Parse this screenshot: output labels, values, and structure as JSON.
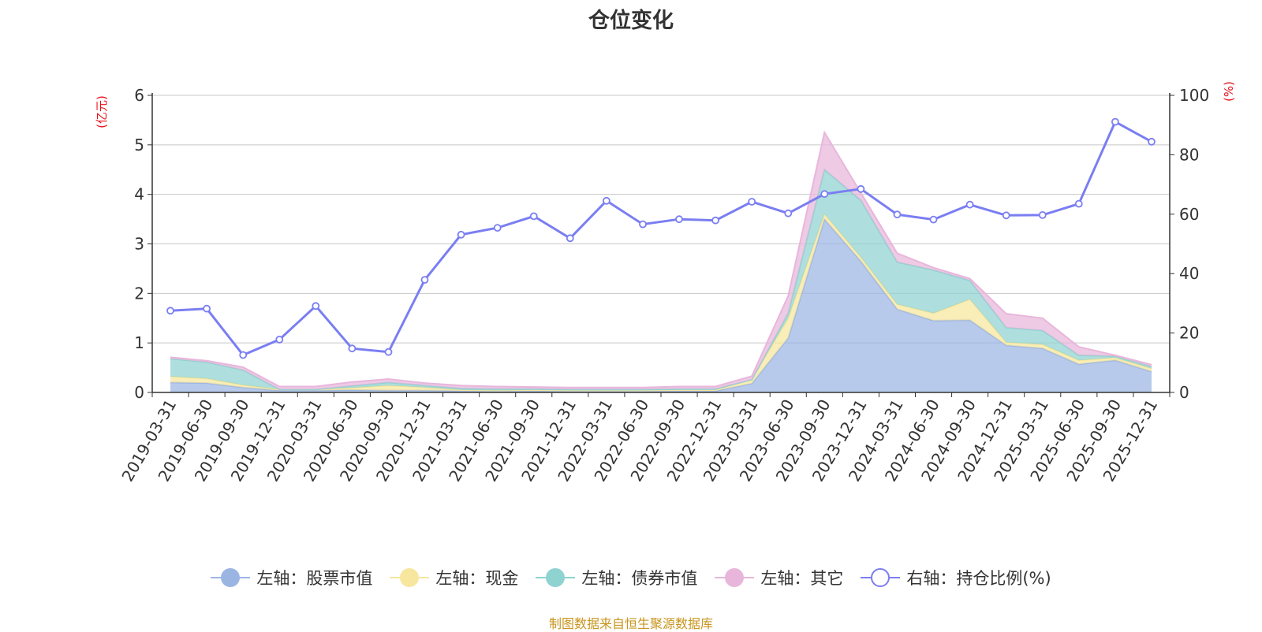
{
  "colors": {
    "stock": "#9bb5e3",
    "cash": "#f7e69d",
    "bond": "#8fd3d1",
    "other": "#e8b6db",
    "ratio": "#7a7ef2",
    "axis_label": "#e8121b",
    "grid": "#c8c8c8",
    "axis": "#333333",
    "source": "#c8951e"
  },
  "chart_data": {
    "type": "area",
    "title": "仓位变化",
    "left_axis_label": "(亿元)",
    "right_axis_label": "(%)",
    "left_ylim": [
      0,
      6
    ],
    "right_ylim": [
      0,
      100
    ],
    "left_ticks": [
      "0",
      "1",
      "2",
      "3",
      "4",
      "5",
      "6"
    ],
    "right_ticks": [
      "0",
      "20",
      "40",
      "60",
      "80",
      "100"
    ],
    "categories": [
      "2019-03-31",
      "2019-06-30",
      "2019-09-30",
      "2019-12-31",
      "2020-03-31",
      "2020-06-30",
      "2020-09-30",
      "2020-12-31",
      "2021-03-31",
      "2021-06-30",
      "2021-09-30",
      "2021-12-31",
      "2022-03-31",
      "2022-06-30",
      "2022-09-30",
      "2022-12-31",
      "2023-03-31",
      "2023-06-30",
      "2023-09-30",
      "2023-12-31",
      "2024-03-31",
      "2024-06-30",
      "2024-09-30",
      "2024-12-31",
      "2025-03-31",
      "2025-06-30",
      "2025-09-30",
      "2025-12-31"
    ],
    "series": [
      {
        "name": "左轴：股票市值",
        "axis": "left",
        "stacked": true,
        "values": [
          0.2,
          0.19,
          0.1,
          0.04,
          0.04,
          0.05,
          0.04,
          0.04,
          0.03,
          0.03,
          0.03,
          0.03,
          0.03,
          0.03,
          0.03,
          0.03,
          0.18,
          1.1,
          3.5,
          2.65,
          1.68,
          1.45,
          1.46,
          0.95,
          0.89,
          0.57,
          0.65,
          0.42
        ]
      },
      {
        "name": "左轴：现金",
        "axis": "left",
        "stacked": true,
        "values": [
          0.12,
          0.09,
          0.05,
          0.02,
          0.02,
          0.04,
          0.1,
          0.06,
          0.02,
          0.01,
          0.02,
          0.01,
          0.01,
          0.01,
          0.02,
          0.02,
          0.08,
          0.4,
          0.1,
          0.08,
          0.1,
          0.15,
          0.42,
          0.06,
          0.08,
          0.08,
          0.05,
          0.06
        ]
      },
      {
        "name": "左轴：债券市值",
        "axis": "left",
        "stacked": true,
        "values": [
          0.36,
          0.33,
          0.3,
          0.0,
          0.0,
          0.04,
          0.06,
          0.04,
          0.03,
          0.03,
          0.02,
          0.02,
          0.02,
          0.02,
          0.02,
          0.02,
          0.0,
          0.1,
          0.9,
          1.15,
          0.85,
          0.87,
          0.38,
          0.3,
          0.28,
          0.1,
          0.03,
          0.04
        ]
      },
      {
        "name": "左轴：其它",
        "axis": "left",
        "stacked": true,
        "values": [
          0.03,
          0.03,
          0.06,
          0.06,
          0.06,
          0.08,
          0.07,
          0.05,
          0.06,
          0.05,
          0.04,
          0.04,
          0.04,
          0.04,
          0.05,
          0.05,
          0.07,
          0.35,
          0.75,
          0.15,
          0.18,
          0.05,
          0.04,
          0.28,
          0.25,
          0.17,
          0.02,
          0.04
        ]
      },
      {
        "name": "右轴：持仓比例(%)",
        "axis": "right",
        "type": "line",
        "values": [
          27.5,
          28.2,
          12.6,
          17.8,
          29.1,
          14.8,
          13.6,
          37.9,
          53.1,
          55.4,
          59.3,
          51.9,
          64.5,
          56.6,
          58.3,
          57.9,
          64.2,
          60.3,
          66.8,
          68.5,
          59.9,
          58.2,
          63.2,
          59.6,
          59.7,
          63.5,
          91.1,
          84.4
        ]
      }
    ]
  },
  "legend": [
    {
      "label": "左轴：股票市值",
      "color_key": "stock",
      "hollow": false
    },
    {
      "label": "左轴：现金",
      "color_key": "cash",
      "hollow": false
    },
    {
      "label": "左轴：债券市值",
      "color_key": "bond",
      "hollow": false
    },
    {
      "label": "左轴：其它",
      "color_key": "other",
      "hollow": false
    },
    {
      "label": "右轴：持仓比例(%)",
      "color_key": "ratio",
      "hollow": true
    }
  ],
  "source_note": "制图数据来自恒生聚源数据库"
}
